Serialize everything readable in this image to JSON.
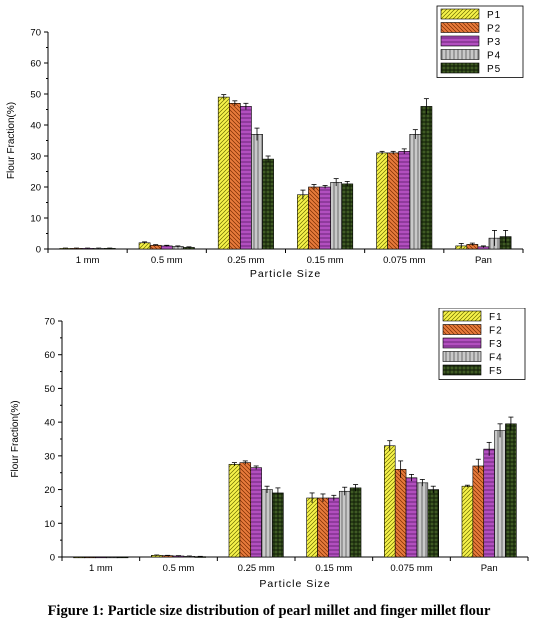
{
  "chart_data": [
    {
      "type": "bar",
      "categories": [
        "1 mm",
        "0.5 mm",
        "0.25 mm",
        "0.15 mm",
        "0.075 mm",
        "Pan"
      ],
      "xlabel": "Particle Size",
      "ylabel": "Flour Fraction(%)",
      "ylim": [
        0,
        70
      ],
      "yticks": [
        0,
        10,
        20,
        30,
        40,
        50,
        60,
        70
      ],
      "legend_position": "top-right",
      "series": [
        {
          "name": "P1",
          "values": [
            0.2,
            2.0,
            49.0,
            17.5,
            31.0,
            1.0
          ],
          "errors": [
            0.1,
            0.3,
            0.8,
            1.5,
            0.5,
            0.8
          ]
        },
        {
          "name": "P2",
          "values": [
            0.2,
            1.2,
            47.0,
            20.0,
            31.0,
            1.5
          ],
          "errors": [
            0.1,
            0.2,
            0.8,
            0.8,
            0.5,
            0.4
          ]
        },
        {
          "name": "P3",
          "values": [
            0.2,
            1.0,
            46.0,
            20.0,
            31.5,
            0.7
          ],
          "errors": [
            0.1,
            0.2,
            1.0,
            0.5,
            0.8,
            0.3
          ]
        },
        {
          "name": "P4",
          "values": [
            0.2,
            0.8,
            37.0,
            21.5,
            37.0,
            3.5
          ],
          "errors": [
            0.1,
            0.2,
            2.0,
            1.2,
            1.5,
            2.5
          ]
        },
        {
          "name": "P5",
          "values": [
            0.2,
            0.5,
            29.0,
            21.0,
            46.0,
            4.0
          ],
          "errors": [
            0.1,
            0.2,
            1.0,
            0.8,
            2.5,
            2.0
          ]
        }
      ]
    },
    {
      "type": "bar",
      "categories": [
        "1 mm",
        "0.5 mm",
        "0.25 mm",
        "0.15 mm",
        "0.075 mm",
        "Pan"
      ],
      "xlabel": "Particle Size",
      "ylabel": "Flour Fraction(%)",
      "ylim": [
        0,
        70
      ],
      "yticks": [
        0,
        10,
        20,
        30,
        40,
        50,
        60,
        70
      ],
      "legend_position": "top-right",
      "series": [
        {
          "name": "F1",
          "values": [
            0.0,
            0.5,
            27.5,
            17.5,
            33.0,
            21.0
          ],
          "errors": [
            0,
            0.1,
            0.5,
            1.5,
            1.5,
            0.3
          ]
        },
        {
          "name": "F2",
          "values": [
            0.0,
            0.4,
            28.0,
            17.5,
            26.0,
            27.0
          ],
          "errors": [
            0,
            0.1,
            0.5,
            1.2,
            2.5,
            2.0
          ]
        },
        {
          "name": "F3",
          "values": [
            0.0,
            0.3,
            26.5,
            17.5,
            23.5,
            32.0
          ],
          "errors": [
            0,
            0.1,
            0.5,
            0.8,
            1.0,
            2.0
          ]
        },
        {
          "name": "F4",
          "values": [
            0.0,
            0.2,
            20.0,
            19.5,
            22.0,
            37.5
          ],
          "errors": [
            0,
            0.1,
            1.0,
            1.2,
            1.0,
            2.0
          ]
        },
        {
          "name": "F5",
          "values": [
            0.0,
            0.1,
            19.0,
            20.5,
            20.0,
            39.5
          ],
          "errors": [
            0,
            0.1,
            1.5,
            1.0,
            1.0,
            2.0
          ]
        }
      ]
    }
  ],
  "caption": "Figure 1: Particle size distribution of pearl millet and finger millet flour",
  "colors": {
    "series1": "#f7f34a",
    "series2": "#e87b3c",
    "series3": "#b24fbf",
    "series4": "#c9c9c9",
    "series5": "#3f5a24"
  }
}
